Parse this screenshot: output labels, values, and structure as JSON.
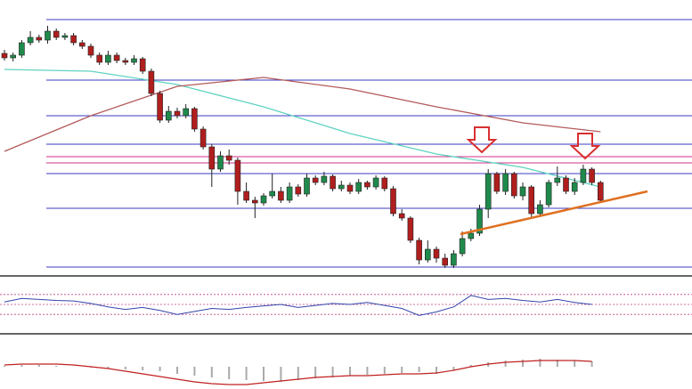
{
  "chart_data": {
    "type": "candlestick",
    "ylim": [
      0,
      285
    ],
    "up_color": "#1f8a4c",
    "down_color": "#b01e1e",
    "open": [
      245,
      240,
      243,
      257,
      263,
      260,
      270,
      263,
      265,
      257,
      253,
      243,
      235,
      243,
      237,
      235,
      239,
      225,
      200,
      170,
      180,
      175,
      183,
      160,
      140,
      115,
      130,
      125,
      90,
      80,
      77,
      85,
      90,
      80,
      95,
      87,
      105,
      100,
      107,
      93,
      97,
      90,
      100,
      95,
      105,
      93,
      65,
      60,
      35,
      13,
      25,
      15,
      7,
      20,
      37,
      43,
      70,
      110,
      90,
      110,
      85,
      95,
      65,
      75,
      100,
      105,
      90,
      100,
      115,
      100
    ],
    "high": [
      249,
      246,
      260,
      270,
      266,
      276,
      273,
      268,
      268,
      260,
      256,
      246,
      248,
      246,
      240,
      243,
      241,
      228,
      203,
      186,
      184,
      188,
      185,
      163,
      143,
      135,
      137,
      128,
      100,
      84,
      88,
      110,
      95,
      100,
      98,
      110,
      108,
      112,
      109,
      102,
      100,
      104,
      102,
      108,
      107,
      96,
      70,
      62,
      38,
      35,
      28,
      20,
      24,
      45,
      48,
      75,
      115,
      112,
      115,
      112,
      100,
      97,
      80,
      103,
      118,
      108,
      105,
      120,
      117,
      102
    ],
    "low": [
      237,
      236,
      240,
      254,
      257,
      256,
      260,
      260,
      254,
      250,
      240,
      232,
      232,
      234,
      232,
      232,
      222,
      197,
      167,
      167,
      172,
      172,
      157,
      137,
      95,
      112,
      120,
      75,
      77,
      60,
      74,
      82,
      77,
      77,
      84,
      84,
      97,
      97,
      90,
      90,
      87,
      87,
      92,
      92,
      90,
      62,
      57,
      32,
      8,
      10,
      10,
      4,
      4,
      17,
      34,
      40,
      60,
      87,
      86,
      82,
      80,
      60,
      62,
      72,
      96,
      87,
      86,
      97,
      97,
      77
    ],
    "close": [
      240,
      243,
      257,
      263,
      260,
      270,
      263,
      265,
      257,
      253,
      243,
      235,
      243,
      237,
      235,
      239,
      225,
      200,
      170,
      180,
      175,
      183,
      160,
      140,
      115,
      130,
      125,
      90,
      80,
      77,
      85,
      90,
      80,
      95,
      87,
      105,
      100,
      107,
      93,
      97,
      90,
      100,
      95,
      105,
      93,
      65,
      60,
      35,
      13,
      25,
      15,
      7,
      20,
      37,
      43,
      70,
      110,
      90,
      110,
      85,
      95,
      65,
      75,
      100,
      105,
      90,
      100,
      115,
      100,
      80
    ],
    "levels": [
      {
        "value": 283,
        "color": "#3b3bc4"
      },
      {
        "value": 215,
        "color": "#3b3bc4"
      },
      {
        "value": 175,
        "color": "#3b3bc4"
      },
      {
        "value": 143,
        "color": "#3b3bc4"
      },
      {
        "value": 129,
        "color": "#d0308a"
      },
      {
        "value": 122,
        "color": "#d0308a"
      },
      {
        "value": 110,
        "color": "#3b3bc4"
      },
      {
        "value": 71,
        "color": "#3b3bc4"
      },
      {
        "value": 5,
        "color": "#3b3bc4"
      }
    ],
    "series": [
      {
        "color": "#5fd3c0",
        "x": [
          0,
          10,
          20,
          30,
          40,
          50,
          60,
          69
        ],
        "values": [
          227,
          225,
          210,
          185,
          155,
          132,
          117,
          95
        ]
      },
      {
        "color": "#b35a5a",
        "x": [
          0,
          10,
          20,
          30,
          40,
          50,
          60,
          69
        ],
        "values": [
          135,
          175,
          208,
          218,
          205,
          185,
          167,
          157
        ]
      }
    ],
    "rsi": {
      "ylim": [
        0,
        100
      ],
      "color": "#3344aa",
      "levels": [
        70,
        50,
        30
      ],
      "x": [
        0,
        2,
        4,
        6,
        8,
        10,
        12,
        14,
        16,
        18,
        20,
        22,
        24,
        26,
        28,
        30,
        32,
        34,
        36,
        38,
        40,
        42,
        44,
        46,
        48,
        50,
        52,
        54,
        56,
        58,
        60,
        62,
        64,
        66,
        68
      ],
      "values": [
        55,
        62,
        60,
        58,
        57,
        52,
        45,
        40,
        44,
        38,
        30,
        36,
        42,
        40,
        44,
        47,
        50,
        44,
        48,
        52,
        50,
        54,
        48,
        42,
        28,
        35,
        45,
        68,
        60,
        62,
        58,
        55,
        60,
        54,
        50
      ]
    },
    "macd": {
      "hist_color": "#aaaaaa",
      "signal_color": "#c02020",
      "x": [
        0,
        2,
        4,
        6,
        8,
        10,
        12,
        14,
        16,
        18,
        20,
        22,
        24,
        26,
        28,
        30,
        32,
        34,
        36,
        38,
        40,
        42,
        44,
        46,
        48,
        50,
        52,
        54,
        56,
        58,
        60,
        62,
        64,
        66,
        68
      ],
      "hist": [
        1,
        2,
        2,
        1,
        0,
        -1,
        -2,
        -3,
        -4,
        -5,
        -8,
        -10,
        -12,
        -14,
        -15,
        -16,
        -17,
        -15,
        -13,
        -12,
        -10,
        -9,
        -8,
        -7,
        -6,
        -8,
        -4,
        2,
        5,
        7,
        8,
        9,
        8,
        7,
        6
      ],
      "signal": [
        2,
        3,
        3,
        3,
        2,
        0,
        -2,
        -5,
        -8,
        -11,
        -14,
        -17,
        -19,
        -20,
        -20,
        -18,
        -16,
        -14,
        -12,
        -11,
        -10,
        -10,
        -9,
        -8,
        -8,
        -7,
        -4,
        0,
        3,
        5,
        6,
        7,
        7,
        7,
        6
      ]
    }
  }
}
